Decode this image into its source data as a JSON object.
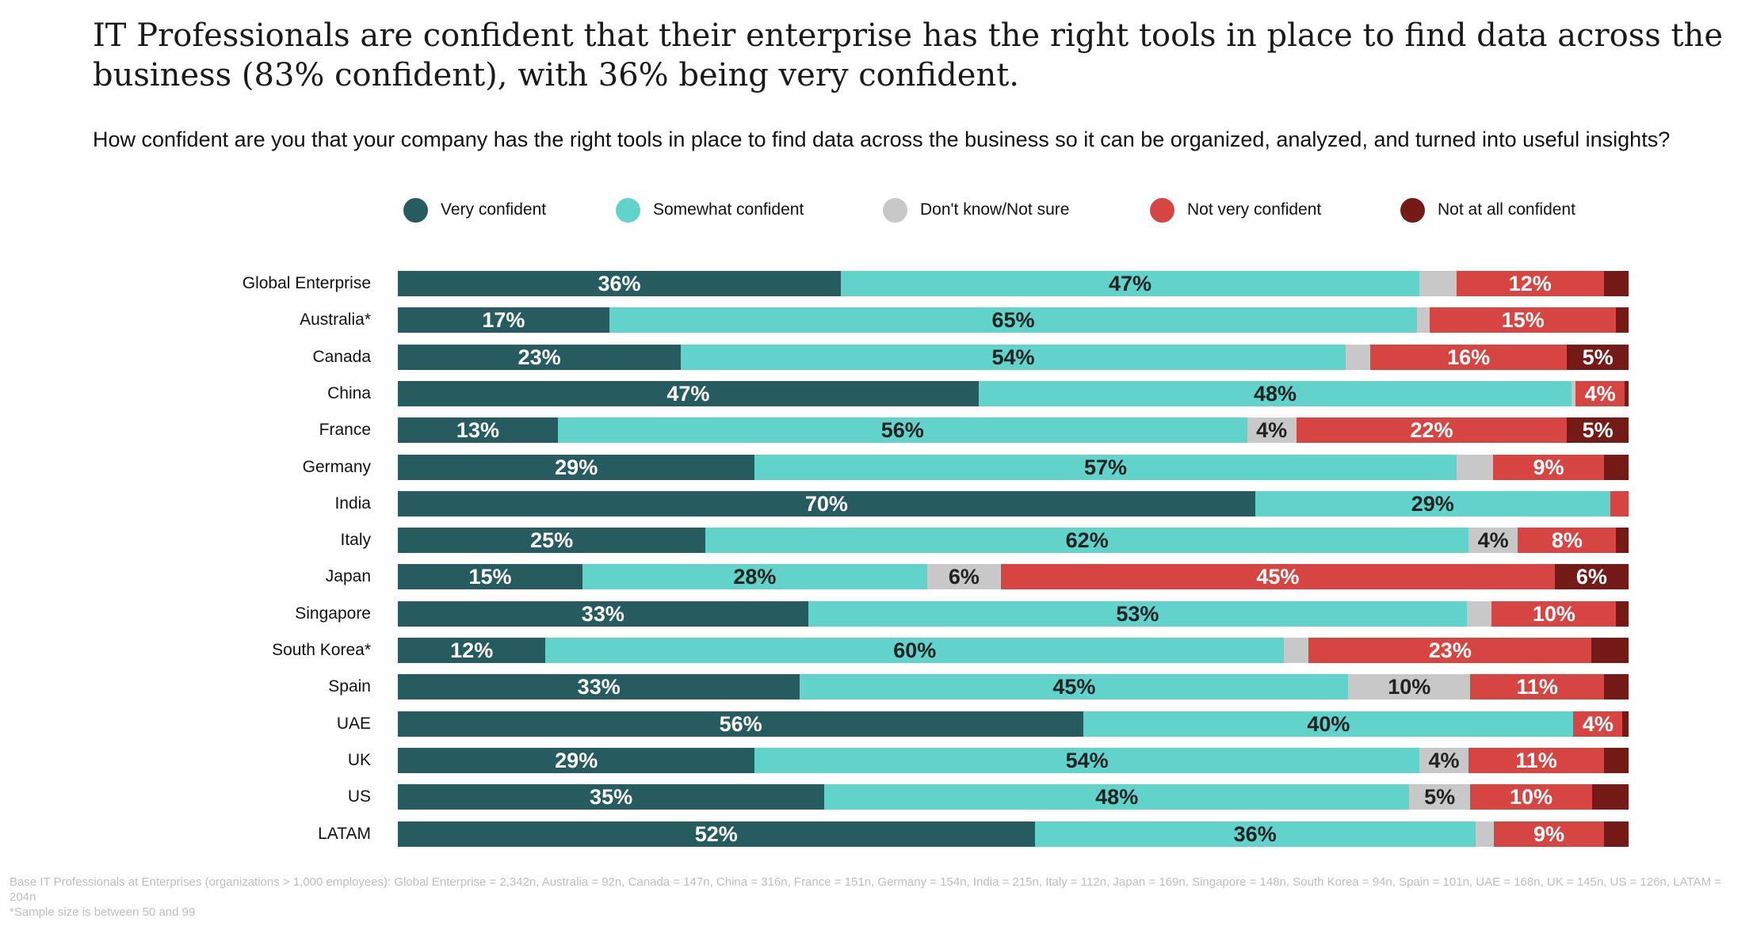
{
  "chart_data": {
    "type": "bar",
    "orientation": "horizontal",
    "stacked": true,
    "title": "IT Professionals are confident that their enterprise has the right tools in place to find data across the business (83% confident), with 36% being very confident.",
    "subtitle": "How confident are you that your company has the right tools in place to find data across the business so it can be organized, analyzed, and turned into useful insights?",
    "xlim": [
      0,
      100
    ],
    "grid": false,
    "legend_placement": "top",
    "categories": [
      "Global Enterprise",
      "Australia*",
      "Canada",
      "China",
      "France",
      "Germany",
      "India",
      "Italy",
      "Japan",
      "Singapore",
      "South Korea*",
      "Spain",
      "UAE",
      "UK",
      "US",
      "LATAM"
    ],
    "series": [
      {
        "name": "Very confident",
        "color": "#265c5f",
        "label_color": "#ffffff",
        "values": [
          36,
          17,
          23,
          47,
          13,
          29,
          70,
          25,
          15,
          33,
          12,
          33,
          56,
          29,
          35,
          52
        ],
        "labels": [
          "36%",
          "17%",
          "23%",
          "47%",
          "13%",
          "29%",
          "70%",
          "25%",
          "15%",
          "33%",
          "12%",
          "33%",
          "56%",
          "29%",
          "35%",
          "52%"
        ]
      },
      {
        "name": "Somewhat confident",
        "color": "#62d3cb",
        "label_color": "#222222",
        "values": [
          47,
          65,
          54,
          48,
          56,
          57,
          29,
          62,
          28,
          53,
          60,
          45,
          40,
          54,
          48,
          36
        ],
        "labels": [
          "47%",
          "65%",
          "54%",
          "48%",
          "56%",
          "57%",
          "29%",
          "62%",
          "28%",
          "53%",
          "60%",
          "45%",
          "40%",
          "54%",
          "48%",
          "36%"
        ]
      },
      {
        "name": "Don't know/Not sure",
        "color": "#c8c8c8",
        "label_color": "#222222",
        "values": [
          3,
          1,
          2,
          0.3,
          4,
          3,
          0,
          4,
          6,
          2,
          2,
          10,
          0,
          4,
          5,
          1.5
        ],
        "labels": [
          null,
          null,
          null,
          null,
          "4%",
          null,
          null,
          "4%",
          "6%",
          null,
          null,
          "10%",
          null,
          "4%",
          "5%",
          null
        ]
      },
      {
        "name": "Not very confident",
        "color": "#d64541",
        "label_color": "#ffffff",
        "values": [
          12,
          15,
          16,
          4,
          22,
          9,
          1.5,
          8,
          45,
          10,
          23,
          11,
          4,
          11,
          10,
          9
        ],
        "labels": [
          "12%",
          "15%",
          "16%",
          "4%",
          "22%",
          "9%",
          null,
          "8%",
          "45%",
          "10%",
          "23%",
          "11%",
          "4%",
          "11%",
          "10%",
          "9%"
        ]
      },
      {
        "name": "Not at all confident",
        "color": "#741b17",
        "label_color": "#ffffff",
        "values": [
          2,
          1,
          5,
          0.3,
          5,
          2,
          0,
          1,
          6,
          1,
          3,
          2,
          0.5,
          2,
          3,
          2
        ],
        "labels": [
          null,
          null,
          "5%",
          null,
          "5%",
          null,
          null,
          null,
          "6%",
          null,
          null,
          null,
          null,
          null,
          null,
          null
        ]
      }
    ]
  },
  "footnote": {
    "base": "Base IT Professionals at Enterprises (organizations > 1,000 employees): Global Enterprise = 2,342n, Australia = 92n, Canada = 147n, China = 316n, France = 151n, Germany = 154n, India = 215n, Italy = 112n, Japan = 169n, Singapore = 148n, South Korea = 94n, Spain = 101n, UAE = 168n, UK = 145n, US = 126n, LATAM = 204n",
    "sample": "*Sample size is between 50 and 99"
  }
}
